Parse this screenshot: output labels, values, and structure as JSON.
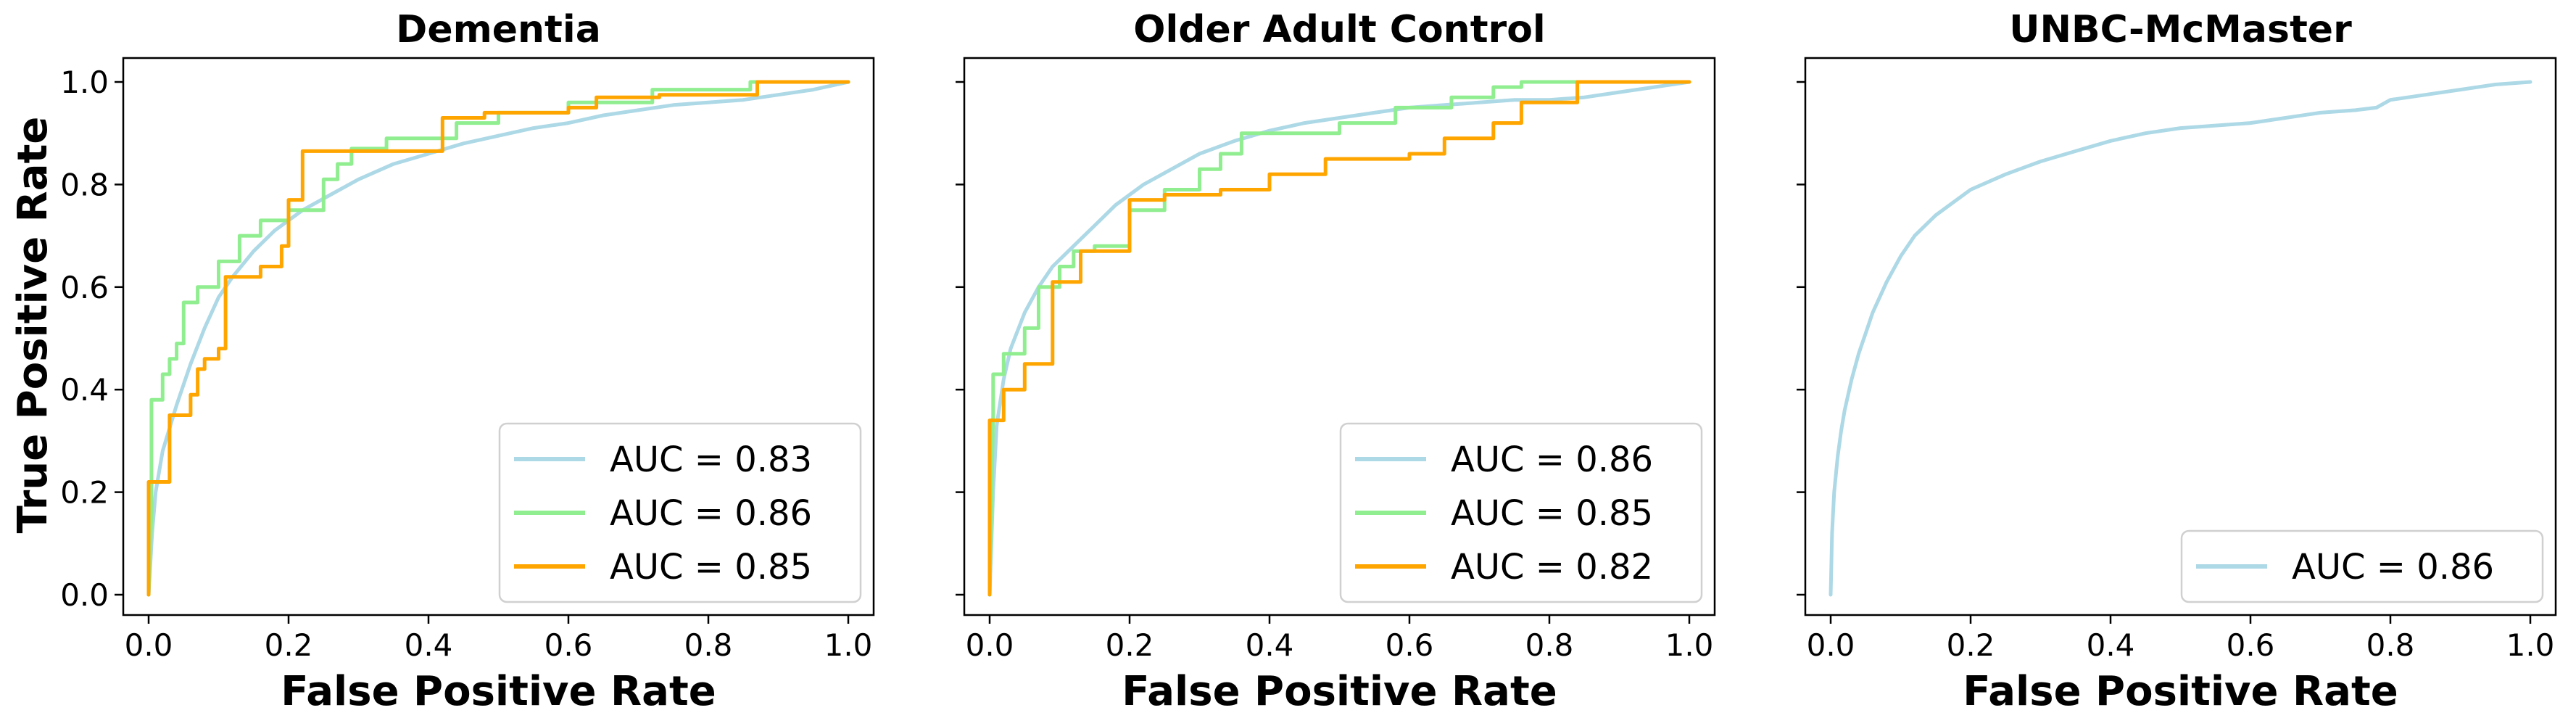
{
  "chart_data": [
    {
      "type": "line",
      "title": "Dementia",
      "xlabel": "False Positive Rate",
      "ylabel": "True Positive Rate",
      "xlim": [
        0,
        1
      ],
      "ylim": [
        0,
        1
      ],
      "xticks": [
        "0.0",
        "0.2",
        "0.4",
        "0.6",
        "0.8",
        "1.0"
      ],
      "yticks": [
        "0.0",
        "0.2",
        "0.4",
        "0.6",
        "0.8",
        "1.0"
      ],
      "legend_position": "lower-right",
      "series": [
        {
          "name": "AUC = 0.83",
          "color": "#add8e6",
          "x": [
            0,
            0.005,
            0.01,
            0.02,
            0.04,
            0.06,
            0.08,
            0.1,
            0.12,
            0.15,
            0.18,
            0.22,
            0.26,
            0.3,
            0.35,
            0.4,
            0.45,
            0.5,
            0.55,
            0.6,
            0.65,
            0.7,
            0.75,
            0.8,
            0.85,
            0.9,
            0.95,
            1.0
          ],
          "y": [
            0,
            0.12,
            0.2,
            0.28,
            0.37,
            0.45,
            0.52,
            0.58,
            0.62,
            0.67,
            0.71,
            0.75,
            0.78,
            0.81,
            0.84,
            0.86,
            0.88,
            0.895,
            0.91,
            0.92,
            0.935,
            0.945,
            0.955,
            0.96,
            0.965,
            0.975,
            0.985,
            1.0
          ]
        },
        {
          "name": "AUC = 0.86",
          "color": "#90ee90",
          "x": [
            0,
            0.004,
            0.004,
            0.02,
            0.02,
            0.03,
            0.03,
            0.04,
            0.04,
            0.05,
            0.05,
            0.07,
            0.07,
            0.1,
            0.1,
            0.13,
            0.13,
            0.16,
            0.16,
            0.2,
            0.2,
            0.25,
            0.25,
            0.27,
            0.27,
            0.29,
            0.29,
            0.34,
            0.34,
            0.44,
            0.44,
            0.5,
            0.5,
            0.6,
            0.6,
            0.72,
            0.72,
            0.86,
            0.86,
            1.0
          ],
          "y": [
            0,
            0.16,
            0.38,
            0.38,
            0.43,
            0.43,
            0.46,
            0.46,
            0.49,
            0.49,
            0.57,
            0.57,
            0.6,
            0.6,
            0.65,
            0.65,
            0.7,
            0.7,
            0.73,
            0.73,
            0.75,
            0.75,
            0.81,
            0.81,
            0.84,
            0.84,
            0.87,
            0.87,
            0.89,
            0.89,
            0.92,
            0.92,
            0.94,
            0.94,
            0.96,
            0.96,
            0.985,
            0.985,
            1.0,
            1.0
          ]
        },
        {
          "name": "AUC = 0.85",
          "color": "#ffa500",
          "x": [
            0,
            0.0,
            0.0,
            0.03,
            0.03,
            0.06,
            0.06,
            0.07,
            0.07,
            0.08,
            0.08,
            0.1,
            0.1,
            0.11,
            0.11,
            0.16,
            0.16,
            0.19,
            0.19,
            0.2,
            0.2,
            0.22,
            0.22,
            0.42,
            0.42,
            0.48,
            0.48,
            0.6,
            0.6,
            0.64,
            0.64,
            0.73,
            0.73,
            0.87,
            0.87,
            1.0
          ],
          "y": [
            0,
            0.1,
            0.22,
            0.22,
            0.35,
            0.35,
            0.39,
            0.39,
            0.44,
            0.44,
            0.46,
            0.46,
            0.48,
            0.48,
            0.62,
            0.62,
            0.64,
            0.64,
            0.68,
            0.68,
            0.77,
            0.77,
            0.865,
            0.865,
            0.93,
            0.93,
            0.94,
            0.94,
            0.95,
            0.95,
            0.97,
            0.97,
            0.975,
            0.975,
            1.0,
            1.0
          ]
        }
      ]
    },
    {
      "type": "line",
      "title": "Older Adult Control",
      "xlabel": "False Positive Rate",
      "ylabel": "",
      "xlim": [
        0,
        1
      ],
      "ylim": [
        0,
        1
      ],
      "xticks": [
        "0.0",
        "0.2",
        "0.4",
        "0.6",
        "0.8",
        "1.0"
      ],
      "yticks": [
        "",
        "",
        "",
        "",
        "",
        ""
      ],
      "legend_position": "lower-right",
      "series": [
        {
          "name": "AUC = 0.86",
          "color": "#add8e6",
          "x": [
            0,
            0.005,
            0.01,
            0.02,
            0.03,
            0.05,
            0.07,
            0.09,
            0.12,
            0.15,
            0.18,
            0.22,
            0.26,
            0.3,
            0.35,
            0.4,
            0.45,
            0.5,
            0.55,
            0.6,
            0.65,
            0.7,
            0.75,
            0.8,
            0.85,
            0.9,
            0.95,
            1.0
          ],
          "y": [
            0,
            0.2,
            0.33,
            0.42,
            0.48,
            0.55,
            0.6,
            0.64,
            0.68,
            0.72,
            0.76,
            0.8,
            0.83,
            0.86,
            0.885,
            0.905,
            0.92,
            0.93,
            0.94,
            0.95,
            0.955,
            0.96,
            0.965,
            0.965,
            0.97,
            0.98,
            0.99,
            1.0
          ]
        },
        {
          "name": "AUC = 0.85",
          "color": "#90ee90",
          "x": [
            0,
            0.005,
            0.005,
            0.02,
            0.02,
            0.05,
            0.05,
            0.07,
            0.07,
            0.1,
            0.1,
            0.12,
            0.12,
            0.15,
            0.15,
            0.2,
            0.2,
            0.25,
            0.25,
            0.3,
            0.3,
            0.33,
            0.33,
            0.36,
            0.36,
            0.5,
            0.5,
            0.58,
            0.58,
            0.66,
            0.66,
            0.72,
            0.72,
            0.76,
            0.76,
            0.8,
            0.8,
            1.0
          ],
          "y": [
            0,
            0.35,
            0.43,
            0.43,
            0.47,
            0.47,
            0.52,
            0.52,
            0.6,
            0.6,
            0.64,
            0.64,
            0.67,
            0.67,
            0.68,
            0.68,
            0.75,
            0.75,
            0.79,
            0.79,
            0.83,
            0.83,
            0.86,
            0.86,
            0.9,
            0.9,
            0.92,
            0.92,
            0.95,
            0.95,
            0.97,
            0.97,
            0.99,
            0.99,
            1.0,
            1.0,
            1.0,
            1.0
          ]
        },
        {
          "name": "AUC = 0.82",
          "color": "#ffa500",
          "x": [
            0,
            0.0,
            0.0,
            0.02,
            0.02,
            0.05,
            0.05,
            0.09,
            0.09,
            0.13,
            0.13,
            0.2,
            0.2,
            0.25,
            0.25,
            0.33,
            0.33,
            0.4,
            0.4,
            0.48,
            0.48,
            0.6,
            0.6,
            0.65,
            0.65,
            0.72,
            0.72,
            0.76,
            0.76,
            0.84,
            0.84,
            1.0
          ],
          "y": [
            0,
            0.24,
            0.34,
            0.34,
            0.4,
            0.4,
            0.45,
            0.45,
            0.61,
            0.61,
            0.67,
            0.67,
            0.77,
            0.77,
            0.78,
            0.78,
            0.79,
            0.79,
            0.82,
            0.82,
            0.85,
            0.85,
            0.86,
            0.86,
            0.89,
            0.89,
            0.92,
            0.92,
            0.96,
            0.96,
            1.0,
            1.0
          ]
        }
      ]
    },
    {
      "type": "line",
      "title": "UNBC-McMaster",
      "xlabel": "False Positive Rate",
      "ylabel": "",
      "xlim": [
        0,
        1
      ],
      "ylim": [
        0,
        1
      ],
      "xticks": [
        "0.0",
        "0.2",
        "0.4",
        "0.6",
        "0.8",
        "1.0"
      ],
      "yticks": [
        "",
        "",
        "",
        "",
        "",
        ""
      ],
      "legend_position": "lower-right",
      "series": [
        {
          "name": "AUC = 0.86",
          "color": "#add8e6",
          "x": [
            0,
            0.002,
            0.005,
            0.01,
            0.015,
            0.02,
            0.03,
            0.04,
            0.05,
            0.06,
            0.08,
            0.1,
            0.12,
            0.15,
            0.18,
            0.2,
            0.25,
            0.3,
            0.35,
            0.4,
            0.45,
            0.5,
            0.55,
            0.6,
            0.65,
            0.7,
            0.75,
            0.78,
            0.8,
            0.85,
            0.9,
            0.95,
            1.0
          ],
          "y": [
            0,
            0.12,
            0.2,
            0.27,
            0.32,
            0.36,
            0.42,
            0.47,
            0.51,
            0.55,
            0.61,
            0.66,
            0.7,
            0.74,
            0.77,
            0.79,
            0.82,
            0.845,
            0.865,
            0.885,
            0.9,
            0.91,
            0.915,
            0.92,
            0.93,
            0.94,
            0.945,
            0.95,
            0.965,
            0.975,
            0.985,
            0.995,
            1.0
          ]
        }
      ]
    }
  ]
}
